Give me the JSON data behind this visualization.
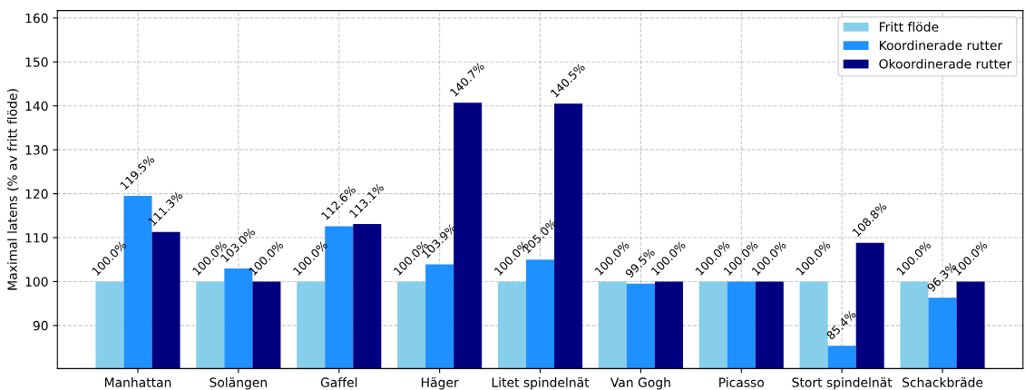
{
  "chart_data": {
    "type": "bar",
    "ylabel": "Maximal latens (% av fritt flöde)",
    "categories": [
      "Manhattan",
      "Solängen",
      "Gaffel",
      "Häger",
      "Litet spindelnät",
      "Van Gogh",
      "Picasso",
      "Stort spindelnät",
      "Schackbräde"
    ],
    "series": [
      {
        "name": "Fritt flöde",
        "color": "#87ceeb",
        "values": [
          100.0,
          100.0,
          100.0,
          100.0,
          100.0,
          100.0,
          100.0,
          100.0,
          100.0
        ],
        "value_labels": [
          "100.0%",
          "100.0%",
          "100.0%",
          "100.0%",
          "100.0%",
          "100.0%",
          "100.0%",
          "100.0%",
          "100.0%"
        ]
      },
      {
        "name": "Koordinerade rutter",
        "color": "#1e90ff",
        "values": [
          119.5,
          103.0,
          112.6,
          103.9,
          105.0,
          99.5,
          100.0,
          85.4,
          96.3
        ],
        "value_labels": [
          "119.5%",
          "103.0%",
          "112.6%",
          "103.9%",
          "105.0%",
          "99.5%",
          "100.0%",
          "85.4%",
          "96.3%"
        ]
      },
      {
        "name": "Okoordinerade rutter",
        "color": "#000080",
        "values": [
          111.3,
          100.0,
          113.1,
          140.7,
          140.5,
          100.0,
          100.0,
          108.8,
          100.0
        ],
        "value_labels": [
          "111.3%",
          "100.0%",
          "113.1%",
          "140.7%",
          "140.5%",
          "100.0%",
          "100.0%",
          "108.8%",
          "100.0%"
        ]
      }
    ],
    "ylim": [
      80.2,
      161.7
    ],
    "yticks": [
      90,
      100,
      110,
      120,
      130,
      140,
      150,
      160
    ],
    "grid": true,
    "legend": "top right"
  }
}
